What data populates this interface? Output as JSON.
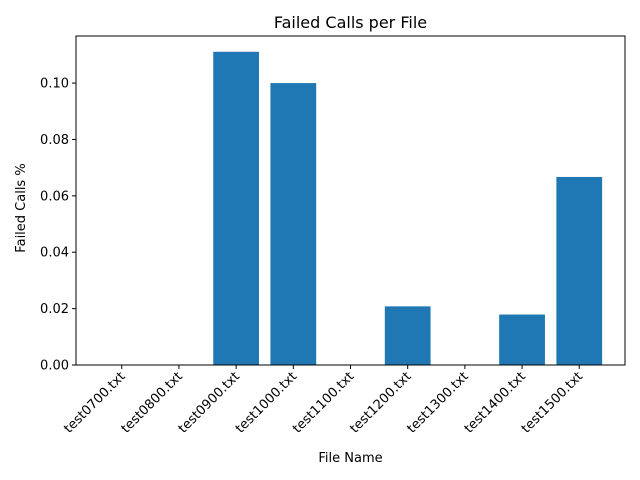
{
  "chart_data": {
    "type": "bar",
    "title": "Failed Calls per File",
    "xlabel": "File Name",
    "ylabel": "Failed Calls %",
    "categories": [
      "test0700.txt",
      "test0800.txt",
      "test0900.txt",
      "test1000.txt",
      "test1100.txt",
      "test1200.txt",
      "test1300.txt",
      "test1400.txt",
      "test1500.txt"
    ],
    "values": [
      0,
      0,
      0.1111,
      0.1,
      0,
      0.0208,
      0,
      0.0179,
      0.0667
    ],
    "ylim": [
      0,
      0.1167
    ],
    "yticks": [
      0,
      0.02,
      0.04,
      0.06,
      0.08,
      0.1
    ],
    "ytick_labels": [
      "0.00",
      "0.02",
      "0.04",
      "0.06",
      "0.08",
      "0.10"
    ],
    "bar_color": "#1f77b4",
    "grid": false,
    "legend": "none"
  }
}
